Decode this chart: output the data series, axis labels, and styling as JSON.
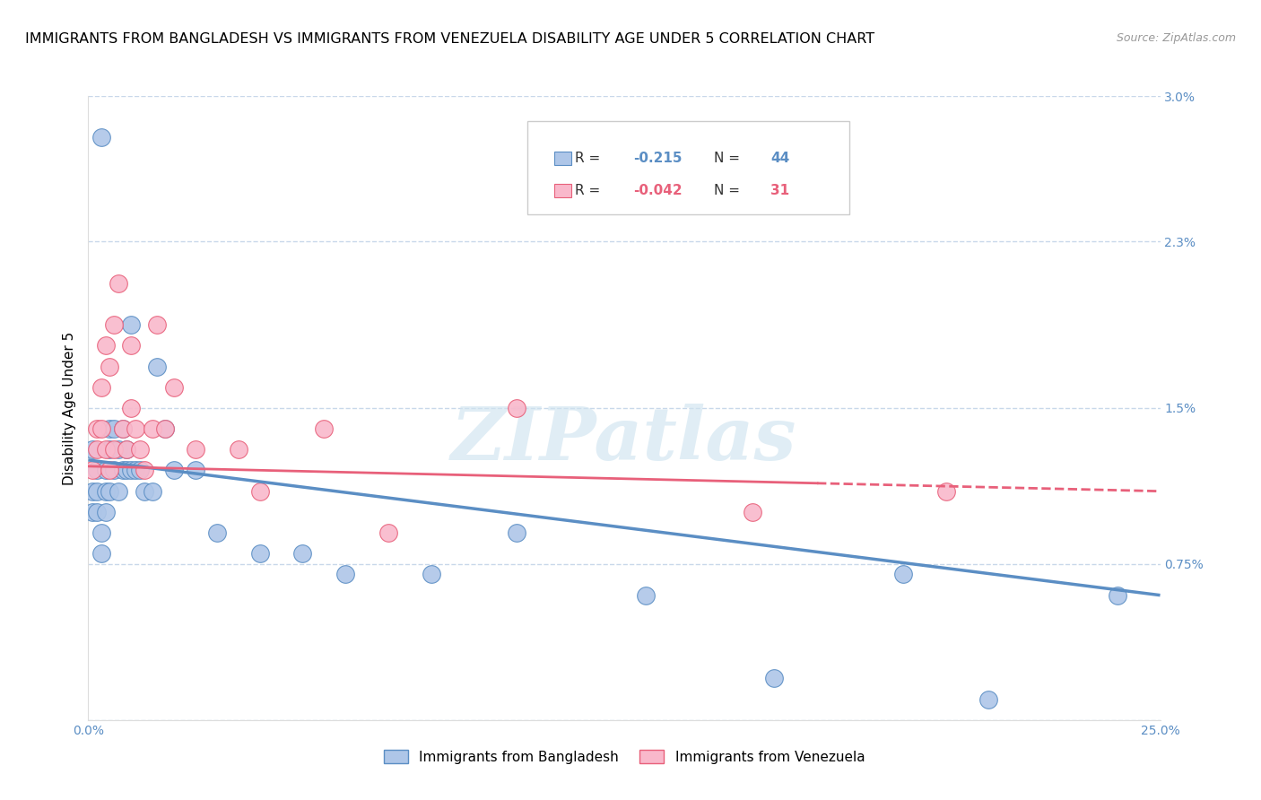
{
  "title": "IMMIGRANTS FROM BANGLADESH VS IMMIGRANTS FROM VENEZUELA DISABILITY AGE UNDER 5 CORRELATION CHART",
  "source": "Source: ZipAtlas.com",
  "ylabel": "Disability Age Under 5",
  "legend_label1": "Immigrants from Bangladesh",
  "legend_label2": "Immigrants from Venezuela",
  "R1": "-0.215",
  "N1": "44",
  "R2": "-0.042",
  "N2": "31",
  "color1": "#aec6e8",
  "color2": "#f9b8cb",
  "line_color1": "#5b8ec4",
  "line_color2": "#e8607a",
  "xmin": 0.0,
  "xmax": 0.25,
  "ymin": 0.0,
  "ymax": 0.03,
  "xticks": [
    0.0,
    0.05,
    0.1,
    0.15,
    0.2,
    0.25
  ],
  "xticklabels": [
    "0.0%",
    "",
    "",
    "",
    "",
    "25.0%"
  ],
  "yticks": [
    0.0,
    0.0075,
    0.015,
    0.023,
    0.03
  ],
  "yticklabels": [
    "",
    "0.75%",
    "1.5%",
    "2.3%",
    "3.0%"
  ],
  "bangladesh_x": [
    0.003,
    0.001,
    0.001,
    0.001,
    0.002,
    0.002,
    0.002,
    0.003,
    0.003,
    0.004,
    0.004,
    0.004,
    0.005,
    0.005,
    0.005,
    0.006,
    0.006,
    0.007,
    0.007,
    0.008,
    0.008,
    0.009,
    0.009,
    0.01,
    0.01,
    0.011,
    0.012,
    0.013,
    0.015,
    0.016,
    0.018,
    0.02,
    0.025,
    0.03,
    0.04,
    0.05,
    0.06,
    0.08,
    0.1,
    0.13,
    0.16,
    0.19,
    0.21,
    0.24
  ],
  "bangladesh_y": [
    0.028,
    0.013,
    0.011,
    0.01,
    0.012,
    0.011,
    0.01,
    0.009,
    0.008,
    0.012,
    0.011,
    0.01,
    0.014,
    0.013,
    0.011,
    0.014,
    0.012,
    0.013,
    0.011,
    0.014,
    0.012,
    0.013,
    0.012,
    0.019,
    0.012,
    0.012,
    0.012,
    0.011,
    0.011,
    0.017,
    0.014,
    0.012,
    0.012,
    0.009,
    0.008,
    0.008,
    0.007,
    0.007,
    0.009,
    0.006,
    0.002,
    0.007,
    0.001,
    0.006
  ],
  "venezuela_x": [
    0.001,
    0.002,
    0.002,
    0.003,
    0.003,
    0.004,
    0.004,
    0.005,
    0.005,
    0.006,
    0.006,
    0.007,
    0.008,
    0.009,
    0.01,
    0.01,
    0.011,
    0.012,
    0.013,
    0.015,
    0.016,
    0.018,
    0.02,
    0.025,
    0.035,
    0.04,
    0.055,
    0.07,
    0.1,
    0.155,
    0.2
  ],
  "venezuela_y": [
    0.012,
    0.014,
    0.013,
    0.016,
    0.014,
    0.018,
    0.013,
    0.017,
    0.012,
    0.019,
    0.013,
    0.021,
    0.014,
    0.013,
    0.015,
    0.018,
    0.014,
    0.013,
    0.012,
    0.014,
    0.019,
    0.014,
    0.016,
    0.013,
    0.013,
    0.011,
    0.014,
    0.009,
    0.015,
    0.01,
    0.011
  ],
  "watermark": "ZIPatlas",
  "background_color": "#ffffff",
  "grid_color": "#c8d8ea",
  "title_fontsize": 11.5,
  "axis_label_fontsize": 11,
  "tick_fontsize": 10,
  "tick_color": "#5b8ec4"
}
